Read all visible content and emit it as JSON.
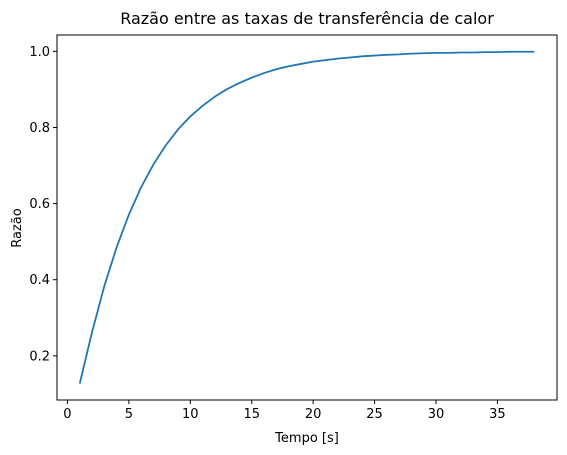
{
  "chart_data": {
    "type": "line",
    "title": "Razão entre as taxas de transferência de calor",
    "xlabel": "Tempo [s]",
    "ylabel": "Razão",
    "xlim": [
      -0.85,
      39.85
    ],
    "ylim": [
      0.084,
      1.043
    ],
    "x_ticks": [
      {
        "value": 0,
        "label": "0"
      },
      {
        "value": 5,
        "label": "5"
      },
      {
        "value": 10,
        "label": "10"
      },
      {
        "value": 15,
        "label": "15"
      },
      {
        "value": 20,
        "label": "20"
      },
      {
        "value": 25,
        "label": "25"
      },
      {
        "value": 30,
        "label": "30"
      },
      {
        "value": 35,
        "label": "35"
      }
    ],
    "y_ticks": [
      {
        "value": 0.2,
        "label": "0.2"
      },
      {
        "value": 0.4,
        "label": "0.4"
      },
      {
        "value": 0.6,
        "label": "0.6"
      },
      {
        "value": 0.8,
        "label": "0.8"
      },
      {
        "value": 1.0,
        "label": "1.0"
      }
    ],
    "grid": false,
    "series": [
      {
        "color": "#1f77b4",
        "x": [
          1,
          2,
          3,
          4,
          5,
          6,
          7,
          8,
          9,
          10,
          11,
          12,
          13,
          14,
          15,
          16,
          17,
          18,
          19,
          20,
          21,
          22,
          23,
          24,
          25,
          26,
          27,
          28,
          29,
          30,
          31,
          32,
          33,
          34,
          35,
          36,
          37,
          38
        ],
        "y": [
          0.127,
          0.262,
          0.383,
          0.485,
          0.571,
          0.643,
          0.703,
          0.753,
          0.795,
          0.829,
          0.857,
          0.881,
          0.901,
          0.917,
          0.931,
          0.943,
          0.953,
          0.961,
          0.967,
          0.973,
          0.977,
          0.981,
          0.984,
          0.987,
          0.989,
          0.991,
          0.992,
          0.994,
          0.995,
          0.996,
          0.996,
          0.997,
          0.997,
          0.998,
          0.998,
          0.999,
          0.999,
          0.999
        ]
      }
    ]
  }
}
